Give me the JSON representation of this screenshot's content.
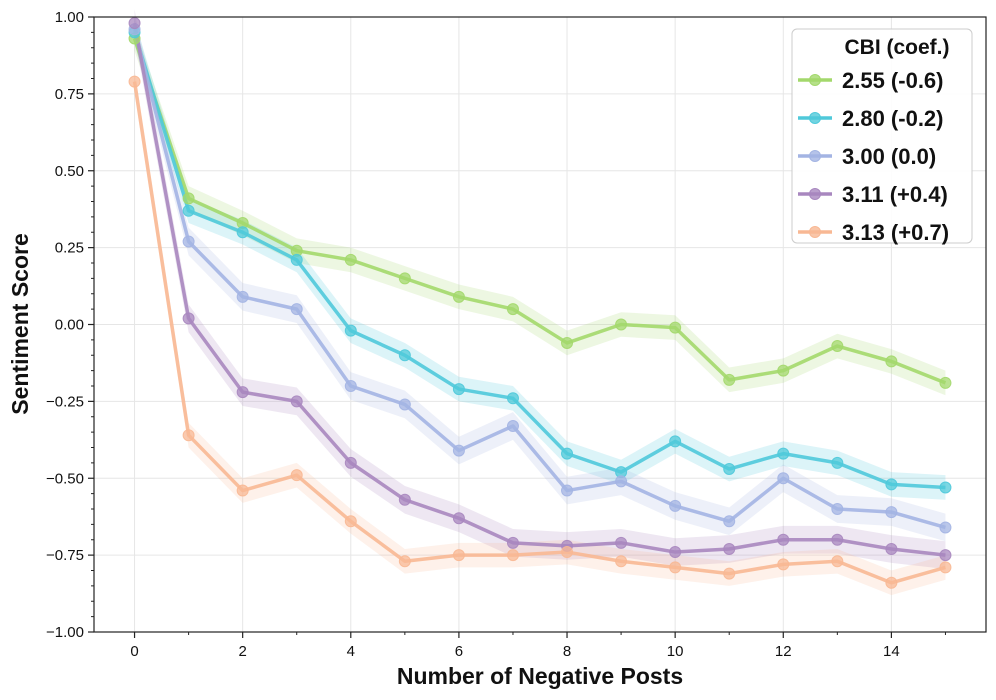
{
  "chart_data": {
    "type": "line",
    "title": "",
    "xlabel": "Number of Negative Posts",
    "ylabel": "Sentiment Score",
    "xlim": [
      -0.75,
      15.75
    ],
    "ylim": [
      -1.0,
      1.0
    ],
    "grid": true,
    "legend_position": "top-right",
    "legend_title": "CBI (coef.)",
    "x": [
      0,
      1,
      2,
      3,
      4,
      5,
      6,
      7,
      8,
      9,
      10,
      11,
      12,
      13,
      14,
      15
    ],
    "x_ticks": [
      0,
      2,
      4,
      6,
      8,
      10,
      12,
      14
    ],
    "x_tick_labels": [
      "0",
      "2",
      "4",
      "6",
      "8",
      "10",
      "12",
      "14"
    ],
    "y_ticks": [
      -1.0,
      -0.75,
      -0.5,
      -0.25,
      0.0,
      0.25,
      0.5,
      0.75,
      1.0
    ],
    "y_tick_labels": [
      "−1.00",
      "−0.75",
      "−0.50",
      "−0.25",
      "0.00",
      "0.25",
      "0.50",
      "0.75",
      "1.00"
    ],
    "series": [
      {
        "name": "2.55 (-0.6)",
        "color": "#a3d86c",
        "values": [
          0.93,
          0.41,
          0.33,
          0.24,
          0.21,
          0.15,
          0.09,
          0.05,
          -0.06,
          0.0,
          -0.01,
          -0.18,
          -0.15,
          -0.07,
          -0.12,
          -0.19
        ],
        "band": 0.04
      },
      {
        "name": "2.80 (-0.2)",
        "color": "#4fc9da",
        "values": [
          0.95,
          0.37,
          0.3,
          0.21,
          -0.02,
          -0.1,
          -0.21,
          -0.24,
          -0.42,
          -0.48,
          -0.38,
          -0.47,
          -0.42,
          -0.45,
          -0.52,
          -0.53
        ],
        "band": 0.04
      },
      {
        "name": "3.00 (0.0)",
        "color": "#a3b4e3",
        "values": [
          0.96,
          0.27,
          0.09,
          0.05,
          -0.2,
          -0.26,
          -0.41,
          -0.33,
          -0.54,
          -0.51,
          -0.59,
          -0.64,
          -0.5,
          -0.6,
          -0.61,
          -0.66
        ],
        "band": 0.045
      },
      {
        "name": "3.11 (+0.4)",
        "color": "#a887bf",
        "values": [
          0.98,
          0.02,
          -0.22,
          -0.25,
          -0.45,
          -0.57,
          -0.63,
          -0.71,
          -0.72,
          -0.71,
          -0.74,
          -0.73,
          -0.7,
          -0.7,
          -0.73,
          -0.75
        ],
        "band": 0.045
      },
      {
        "name": "3.13 (+0.7)",
        "color": "#f8b894",
        "values": [
          0.79,
          -0.36,
          -0.54,
          -0.49,
          -0.64,
          -0.77,
          -0.75,
          -0.75,
          -0.74,
          -0.77,
          -0.79,
          -0.81,
          -0.78,
          -0.77,
          -0.84,
          -0.79
        ],
        "band": 0.04
      }
    ]
  }
}
